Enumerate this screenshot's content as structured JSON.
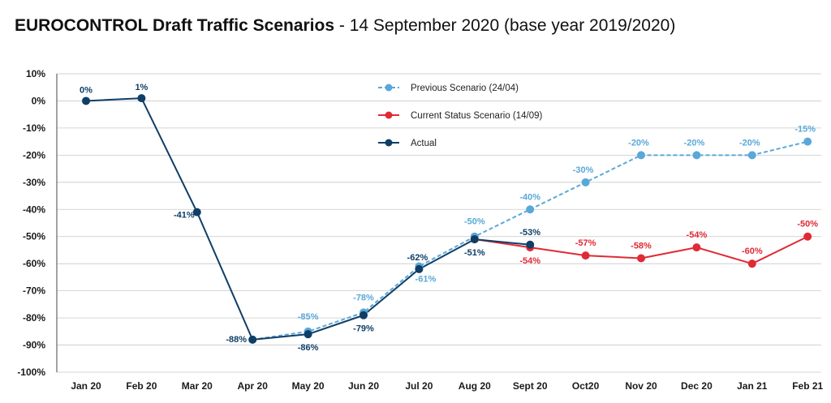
{
  "title_bold": "EUROCONTROL Draft Traffic Scenarios",
  "title_rest": " - 14 September 2020 (base year 2019/2020)",
  "chart_data": {
    "type": "line",
    "categories": [
      "Jan 20",
      "Feb 20",
      "Mar 20",
      "Apr 20",
      "May 20",
      "Jun 20",
      "Jul 20",
      "Aug 20",
      "Sept 20",
      "Oct20",
      "Nov 20",
      "Dec 20",
      "Jan 21",
      "Feb 21"
    ],
    "y_tick_labels": [
      "10%",
      "0%",
      "-10%",
      "-20%",
      "-30%",
      "-40%",
      "-50%",
      "-60%",
      "-70%",
      "-80%",
      "-90%",
      "-100%"
    ],
    "ylim": [
      -100,
      10
    ],
    "grid": true,
    "legend_position": "top-center",
    "series": [
      {
        "name": "Previous Scenario (24/04)",
        "color": "#5aa8d8",
        "dashed": true,
        "points": [
          {
            "cat": "Apr 20",
            "value": -88,
            "label": ""
          },
          {
            "cat": "May 20",
            "value": -85,
            "label": "-85%"
          },
          {
            "cat": "Jun 20",
            "value": -78,
            "label": "-78%"
          },
          {
            "cat": "Jul 20",
            "value": -61,
            "label": "-61%"
          },
          {
            "cat": "Aug 20",
            "value": -50,
            "label": "-50%"
          },
          {
            "cat": "Sept 20",
            "value": -40,
            "label": "-40%"
          },
          {
            "cat": "Oct20",
            "value": -30,
            "label": "-30%"
          },
          {
            "cat": "Nov 20",
            "value": -20,
            "label": "-20%"
          },
          {
            "cat": "Dec 20",
            "value": -20,
            "label": "-20%"
          },
          {
            "cat": "Jan 21",
            "value": -20,
            "label": "-20%"
          },
          {
            "cat": "Feb 21",
            "value": -15,
            "label": "-15%"
          }
        ]
      },
      {
        "name": "Current Status Scenario (14/09)",
        "color": "#e02a35",
        "dashed": false,
        "points": [
          {
            "cat": "Aug 20",
            "value": -51,
            "label": ""
          },
          {
            "cat": "Sept 20",
            "value": -54,
            "label": "-54%"
          },
          {
            "cat": "Oct20",
            "value": -57,
            "label": "-57%"
          },
          {
            "cat": "Nov 20",
            "value": -58,
            "label": "-58%"
          },
          {
            "cat": "Dec 20",
            "value": -54,
            "label": "-54%"
          },
          {
            "cat": "Jan 21",
            "value": -60,
            "label": "-60%"
          },
          {
            "cat": "Feb 21",
            "value": -50,
            "label": "-50%"
          }
        ]
      },
      {
        "name": "Actual",
        "color": "#0f3e66",
        "dashed": false,
        "points": [
          {
            "cat": "Jan 20",
            "value": 0,
            "label": "0%"
          },
          {
            "cat": "Feb 20",
            "value": 1,
            "label": "1%"
          },
          {
            "cat": "Mar 20",
            "value": -41,
            "label": "-41%"
          },
          {
            "cat": "Apr 20",
            "value": -88,
            "label": "-88%"
          },
          {
            "cat": "May 20",
            "value": -86,
            "label": "-86%"
          },
          {
            "cat": "Jun 20",
            "value": -79,
            "label": "-79%"
          },
          {
            "cat": "Jul 20",
            "value": -62,
            "label": "-62%"
          },
          {
            "cat": "Aug 20",
            "value": -51,
            "label": "-51%"
          },
          {
            "cat": "Sept 20",
            "value": -53,
            "label": "-53%"
          }
        ]
      }
    ]
  }
}
